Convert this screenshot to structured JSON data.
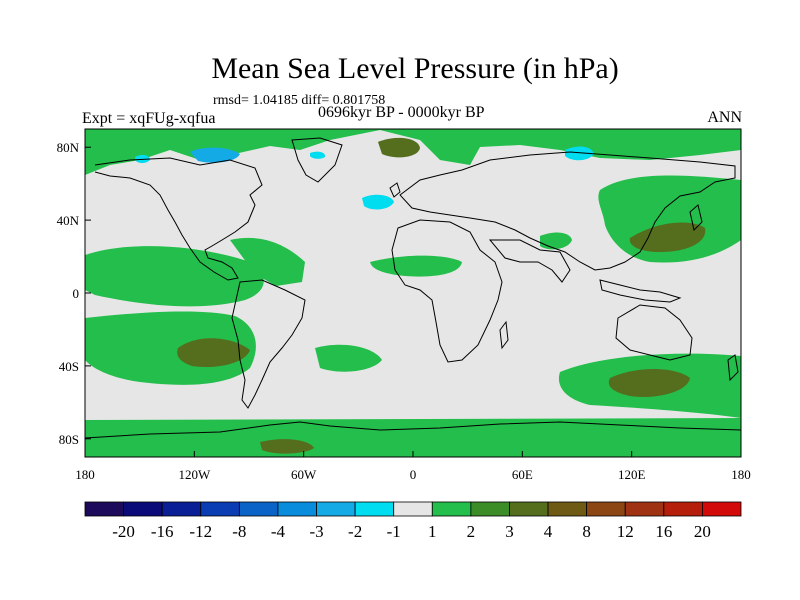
{
  "header": {
    "title": "Mean Sea Level Pressure (in hPa)",
    "stats": "rmsd= 1.04185 diff= 0.801758",
    "experiment": "Expt = xqFUg-xqfua",
    "period": "0696kyr BP - 0000kyr BP",
    "season": "ANN"
  },
  "map": {
    "projection": "cylindrical-equidistant",
    "lon_range": [
      -180,
      180
    ],
    "lat_range": [
      -90,
      90
    ],
    "lon_ticks": [
      {
        "value": -180,
        "label": "180"
      },
      {
        "value": -120,
        "label": "120W"
      },
      {
        "value": -60,
        "label": "60W"
      },
      {
        "value": 0,
        "label": "0"
      },
      {
        "value": 60,
        "label": "60E"
      },
      {
        "value": 120,
        "label": "120E"
      },
      {
        "value": 180,
        "label": "180"
      }
    ],
    "lat_ticks": [
      {
        "value": 80,
        "label": "80N"
      },
      {
        "value": 40,
        "label": "40N"
      },
      {
        "value": 0,
        "label": "0"
      },
      {
        "value": -40,
        "label": "40S"
      },
      {
        "value": -80,
        "label": "80S"
      }
    ]
  },
  "colorbar": {
    "colors": [
      "#1e0a5a",
      "#0a0a78",
      "#0a1e96",
      "#0a3cb4",
      "#0a64c8",
      "#0a8cdc",
      "#14aae6",
      "#00dcf0",
      "#e6e6e6",
      "#23be4b",
      "#3c8c28",
      "#556e1e",
      "#6e5a14",
      "#8c4614",
      "#a03214",
      "#b41e0a",
      "#d20a0a"
    ],
    "labels": [
      "-20",
      "-16",
      "-12",
      "-8",
      "-4",
      "-3",
      "-2",
      "-1",
      "1",
      "2",
      "3",
      "4",
      "8",
      "12",
      "16",
      "20"
    ]
  },
  "levels": {
    "neutral": "#e6e6e6",
    "pos1": "#23be4b",
    "pos2": "#556e1e",
    "neg1": "#00dcf0",
    "neg2": "#14aae6"
  }
}
